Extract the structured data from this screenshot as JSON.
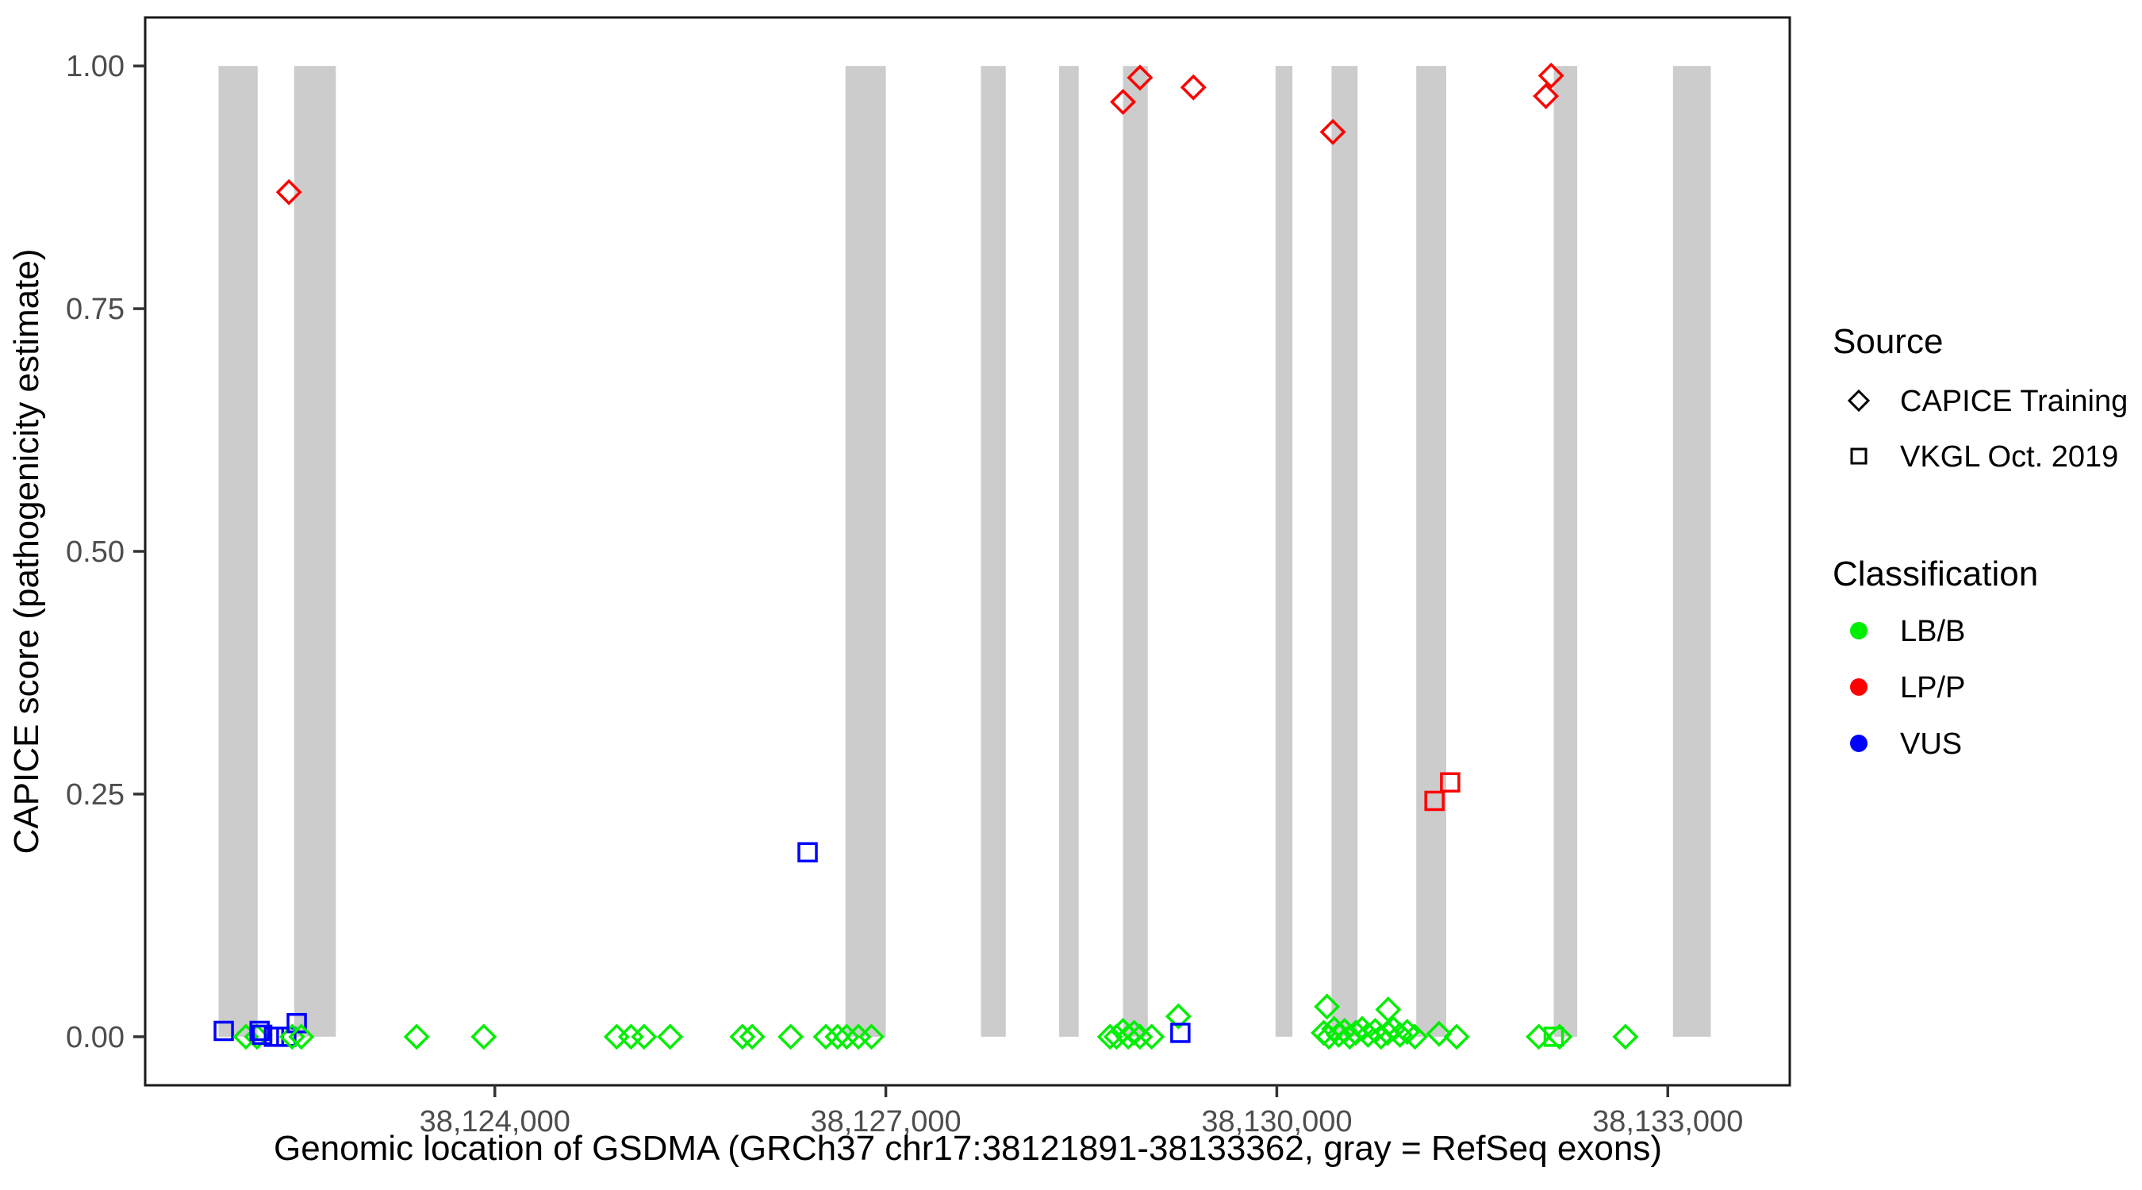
{
  "figure": {
    "background": "#ffffff",
    "panel_border_color": "#1a1a1a",
    "tick_color": "#333333",
    "axis_text_color": "#4d4d4d"
  },
  "legend": {
    "source": {
      "title": "Source",
      "items": [
        {
          "label": "CAPICE Training",
          "shape": "diamond"
        },
        {
          "label": "VKGL Oct. 2019",
          "shape": "square"
        }
      ]
    },
    "classification": {
      "title": "Classification",
      "items": [
        {
          "label": "LB/B",
          "color_key": "LB/B"
        },
        {
          "label": "LP/P",
          "color_key": "LP/P"
        },
        {
          "label": "VUS",
          "color_key": "VUS"
        }
      ]
    }
  },
  "colors": {
    "LB/B": "#00ee00",
    "LP/P": "#ff0000",
    "VUS": "#0000ff",
    "exon": "#cccccc"
  },
  "chart_data": {
    "type": "scatter",
    "title": "",
    "xlabel": "Genomic location of GSDMA (GRCh37 chr17:38121891-38133362, gray = RefSeq exons)",
    "ylabel": "CAPICE score (pathogenicity estimate)",
    "x_domain": [
      38121317,
      38133936
    ],
    "y_domain": [
      -0.05,
      1.05
    ],
    "grid": false,
    "legend_position": "right",
    "x_ticks": [
      {
        "v": 38124000,
        "label": "38,124,000"
      },
      {
        "v": 38127000,
        "label": "38,127,000"
      },
      {
        "v": 38130000,
        "label": "38,130,000"
      },
      {
        "v": 38133000,
        "label": "38,133,000"
      }
    ],
    "y_ticks": [
      {
        "v": 0.0,
        "label": "0.00"
      },
      {
        "v": 0.25,
        "label": "0.25"
      },
      {
        "v": 0.5,
        "label": "0.50"
      },
      {
        "v": 0.75,
        "label": "0.75"
      },
      {
        "v": 1.0,
        "label": "1.00"
      }
    ],
    "exons_note": "gray = RefSeq exons, bars span score 0 to 1",
    "exons": [
      [
        38121880,
        38122180
      ],
      [
        38122460,
        38122780
      ],
      [
        38126690,
        38127000
      ],
      [
        38127730,
        38127920
      ],
      [
        38128330,
        38128480
      ],
      [
        38128820,
        38129010
      ],
      [
        38129990,
        38130120
      ],
      [
        38130420,
        38130620
      ],
      [
        38131070,
        38131300
      ],
      [
        38132125,
        38132305
      ],
      [
        38133040,
        38133330
      ]
    ],
    "points": [
      {
        "x": 38121920,
        "y": 0.006,
        "shape": "square",
        "cls": "VUS",
        "src": "VKGL Oct. 2019"
      },
      {
        "x": 38122090,
        "y": 0.0,
        "shape": "diamond",
        "cls": "LB/B",
        "src": "CAPICE Training"
      },
      {
        "x": 38122175,
        "y": 0.0,
        "shape": "diamond",
        "cls": "LB/B",
        "src": "CAPICE Training"
      },
      {
        "x": 38122195,
        "y": 0.006,
        "shape": "square",
        "cls": "VUS",
        "src": "VKGL Oct. 2019"
      },
      {
        "x": 38122215,
        "y": 0.002,
        "shape": "square",
        "cls": "VUS",
        "src": "VKGL Oct. 2019"
      },
      {
        "x": 38122305,
        "y": 0.0,
        "shape": "square",
        "cls": "VUS",
        "src": "VKGL Oct. 2019"
      },
      {
        "x": 38122400,
        "y": 0.0,
        "shape": "square",
        "cls": "VUS",
        "src": "VKGL Oct. 2019"
      },
      {
        "x": 38122445,
        "y": 0.0,
        "shape": "diamond",
        "cls": "LB/B",
        "src": "CAPICE Training"
      },
      {
        "x": 38122480,
        "y": 0.014,
        "shape": "square",
        "cls": "VUS",
        "src": "VKGL Oct. 2019"
      },
      {
        "x": 38122515,
        "y": 0.0,
        "shape": "diamond",
        "cls": "LB/B",
        "src": "CAPICE Training"
      },
      {
        "x": 38122420,
        "y": 0.87,
        "shape": "diamond",
        "cls": "LP/P",
        "src": "CAPICE Training"
      },
      {
        "x": 38123400,
        "y": 0.0,
        "shape": "diamond",
        "cls": "LB/B",
        "src": "CAPICE Training"
      },
      {
        "x": 38123915,
        "y": 0.0,
        "shape": "diamond",
        "cls": "LB/B",
        "src": "CAPICE Training"
      },
      {
        "x": 38124935,
        "y": 0.0,
        "shape": "diamond",
        "cls": "LB/B",
        "src": "CAPICE Training"
      },
      {
        "x": 38125045,
        "y": 0.0,
        "shape": "diamond",
        "cls": "LB/B",
        "src": "CAPICE Training"
      },
      {
        "x": 38125145,
        "y": 0.0,
        "shape": "diamond",
        "cls": "LB/B",
        "src": "CAPICE Training"
      },
      {
        "x": 38125345,
        "y": 0.0,
        "shape": "diamond",
        "cls": "LB/B",
        "src": "CAPICE Training"
      },
      {
        "x": 38125900,
        "y": 0.0,
        "shape": "diamond",
        "cls": "LB/B",
        "src": "CAPICE Training"
      },
      {
        "x": 38125975,
        "y": 0.0,
        "shape": "diamond",
        "cls": "LB/B",
        "src": "CAPICE Training"
      },
      {
        "x": 38126270,
        "y": 0.0,
        "shape": "diamond",
        "cls": "LB/B",
        "src": "CAPICE Training"
      },
      {
        "x": 38126400,
        "y": 0.19,
        "shape": "square",
        "cls": "VUS",
        "src": "VKGL Oct. 2019"
      },
      {
        "x": 38126540,
        "y": 0.0,
        "shape": "diamond",
        "cls": "LB/B",
        "src": "CAPICE Training"
      },
      {
        "x": 38126630,
        "y": 0.0,
        "shape": "diamond",
        "cls": "LB/B",
        "src": "CAPICE Training"
      },
      {
        "x": 38126700,
        "y": 0.0,
        "shape": "diamond",
        "cls": "LB/B",
        "src": "CAPICE Training"
      },
      {
        "x": 38126790,
        "y": 0.0,
        "shape": "diamond",
        "cls": "LB/B",
        "src": "CAPICE Training"
      },
      {
        "x": 38126890,
        "y": 0.0,
        "shape": "diamond",
        "cls": "LB/B",
        "src": "CAPICE Training"
      },
      {
        "x": 38128720,
        "y": 0.0,
        "shape": "diamond",
        "cls": "LB/B",
        "src": "CAPICE Training"
      },
      {
        "x": 38128770,
        "y": 0.0,
        "shape": "diamond",
        "cls": "LB/B",
        "src": "CAPICE Training"
      },
      {
        "x": 38128820,
        "y": 0.006,
        "shape": "diamond",
        "cls": "LB/B",
        "src": "CAPICE Training"
      },
      {
        "x": 38128860,
        "y": 0.0,
        "shape": "diamond",
        "cls": "LB/B",
        "src": "CAPICE Training"
      },
      {
        "x": 38128905,
        "y": 0.004,
        "shape": "diamond",
        "cls": "LB/B",
        "src": "CAPICE Training"
      },
      {
        "x": 38128950,
        "y": 0.0,
        "shape": "diamond",
        "cls": "LB/B",
        "src": "CAPICE Training"
      },
      {
        "x": 38129040,
        "y": 0.0,
        "shape": "diamond",
        "cls": "LB/B",
        "src": "CAPICE Training"
      },
      {
        "x": 38129245,
        "y": 0.021,
        "shape": "diamond",
        "cls": "LB/B",
        "src": "CAPICE Training"
      },
      {
        "x": 38129260,
        "y": 0.004,
        "shape": "square",
        "cls": "VUS",
        "src": "VKGL Oct. 2019"
      },
      {
        "x": 38128820,
        "y": 0.963,
        "shape": "diamond",
        "cls": "LP/P",
        "src": "CAPICE Training"
      },
      {
        "x": 38128950,
        "y": 0.988,
        "shape": "diamond",
        "cls": "LP/P",
        "src": "CAPICE Training"
      },
      {
        "x": 38129360,
        "y": 0.978,
        "shape": "diamond",
        "cls": "LP/P",
        "src": "CAPICE Training"
      },
      {
        "x": 38130430,
        "y": 0.932,
        "shape": "diamond",
        "cls": "LP/P",
        "src": "CAPICE Training"
      },
      {
        "x": 38130360,
        "y": 0.004,
        "shape": "diamond",
        "cls": "LB/B",
        "src": "CAPICE Training"
      },
      {
        "x": 38130400,
        "y": 0.0,
        "shape": "diamond",
        "cls": "LB/B",
        "src": "CAPICE Training"
      },
      {
        "x": 38130440,
        "y": 0.008,
        "shape": "diamond",
        "cls": "LB/B",
        "src": "CAPICE Training"
      },
      {
        "x": 38130475,
        "y": 0.002,
        "shape": "diamond",
        "cls": "LB/B",
        "src": "CAPICE Training"
      },
      {
        "x": 38130520,
        "y": 0.006,
        "shape": "diamond",
        "cls": "LB/B",
        "src": "CAPICE Training"
      },
      {
        "x": 38130560,
        "y": 0.0,
        "shape": "diamond",
        "cls": "LB/B",
        "src": "CAPICE Training"
      },
      {
        "x": 38130605,
        "y": 0.004,
        "shape": "diamond",
        "cls": "LB/B",
        "src": "CAPICE Training"
      },
      {
        "x": 38130655,
        "y": 0.008,
        "shape": "diamond",
        "cls": "LB/B",
        "src": "CAPICE Training"
      },
      {
        "x": 38130700,
        "y": 0.002,
        "shape": "diamond",
        "cls": "LB/B",
        "src": "CAPICE Training"
      },
      {
        "x": 38130755,
        "y": 0.006,
        "shape": "diamond",
        "cls": "LB/B",
        "src": "CAPICE Training"
      },
      {
        "x": 38130800,
        "y": 0.0,
        "shape": "diamond",
        "cls": "LB/B",
        "src": "CAPICE Training"
      },
      {
        "x": 38130850,
        "y": 0.004,
        "shape": "diamond",
        "cls": "LB/B",
        "src": "CAPICE Training"
      },
      {
        "x": 38130895,
        "y": 0.008,
        "shape": "diamond",
        "cls": "LB/B",
        "src": "CAPICE Training"
      },
      {
        "x": 38130945,
        "y": 0.002,
        "shape": "diamond",
        "cls": "LB/B",
        "src": "CAPICE Training"
      },
      {
        "x": 38131000,
        "y": 0.005,
        "shape": "diamond",
        "cls": "LB/B",
        "src": "CAPICE Training"
      },
      {
        "x": 38131060,
        "y": 0.0,
        "shape": "diamond",
        "cls": "LB/B",
        "src": "CAPICE Training"
      },
      {
        "x": 38131245,
        "y": 0.003,
        "shape": "diamond",
        "cls": "LB/B",
        "src": "CAPICE Training"
      },
      {
        "x": 38131380,
        "y": 0.0,
        "shape": "diamond",
        "cls": "LB/B",
        "src": "CAPICE Training"
      },
      {
        "x": 38130385,
        "y": 0.031,
        "shape": "diamond",
        "cls": "LB/B",
        "src": "CAPICE Training"
      },
      {
        "x": 38130855,
        "y": 0.028,
        "shape": "diamond",
        "cls": "LB/B",
        "src": "CAPICE Training"
      },
      {
        "x": 38131210,
        "y": 0.243,
        "shape": "square",
        "cls": "LP/P",
        "src": "VKGL Oct. 2019"
      },
      {
        "x": 38131330,
        "y": 0.262,
        "shape": "square",
        "cls": "LP/P",
        "src": "VKGL Oct. 2019"
      },
      {
        "x": 38132065,
        "y": 0.969,
        "shape": "diamond",
        "cls": "LP/P",
        "src": "CAPICE Training"
      },
      {
        "x": 38132105,
        "y": 0.99,
        "shape": "diamond",
        "cls": "LP/P",
        "src": "CAPICE Training"
      },
      {
        "x": 38132010,
        "y": 0.0,
        "shape": "diamond",
        "cls": "LB/B",
        "src": "CAPICE Training"
      },
      {
        "x": 38132125,
        "y": 0.0,
        "shape": "square",
        "cls": "LB/B",
        "src": "VKGL Oct. 2019"
      },
      {
        "x": 38132170,
        "y": 0.0,
        "shape": "diamond",
        "cls": "LB/B",
        "src": "CAPICE Training"
      },
      {
        "x": 38132675,
        "y": 0.0,
        "shape": "diamond",
        "cls": "LB/B",
        "src": "CAPICE Training"
      }
    ]
  }
}
